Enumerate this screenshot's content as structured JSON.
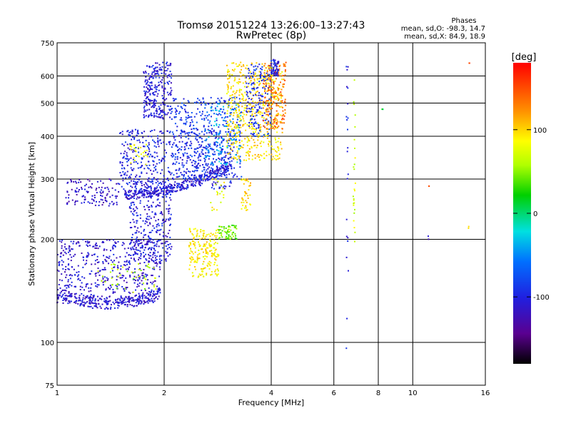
{
  "chart_data": {
    "type": "scatter",
    "title": "Tromsø 20151224 13:26:00–13:27:43",
    "subtitle": "RwPretec (8p)",
    "xlabel": "Frequency [MHz]",
    "ylabel": "Stationary phase Virtual Height [km]",
    "x_scale": "log",
    "y_scale": "log",
    "xlim": [
      1,
      16
    ],
    "ylim": [
      75,
      750
    ],
    "x_ticks": [
      1,
      2,
      4,
      6,
      8,
      10,
      16
    ],
    "x_tick_labels": [
      "1",
      "2",
      "4",
      "6",
      "8",
      "10",
      "16"
    ],
    "y_ticks": [
      75,
      100,
      200,
      300,
      400,
      500,
      600,
      750
    ],
    "y_tick_labels": [
      "75",
      "100",
      "200",
      "300",
      "400",
      "500",
      "600",
      "750"
    ],
    "grid": true,
    "color_scale": {
      "label": "[deg]",
      "range": [
        -180,
        180
      ],
      "ticks": [
        100,
        0,
        -100
      ],
      "tick_labels": [
        "100",
        "0",
        "-100"
      ]
    },
    "stats": {
      "title": "Phases",
      "line1": "mean, sd,O: -98.3, 14.7",
      "line2": "mean, sd,X:  84.9, 18.9"
    },
    "groups": [
      {
        "kind": "curve",
        "f0": 1.0,
        "f1": 1.95,
        "h0": 130,
        "h1": 140,
        "shape": "bowl",
        "phase": -110,
        "jitter": 0.04,
        "n": 260
      },
      {
        "kind": "cloud",
        "f0": 1.0,
        "f1": 1.95,
        "h0": 130,
        "h1": 200,
        "phase": -110,
        "n": 520
      },
      {
        "kind": "cloud",
        "f0": 1.3,
        "f1": 1.9,
        "h0": 140,
        "h1": 170,
        "phase": 60,
        "n": 45
      },
      {
        "kind": "cloud",
        "f0": 1.6,
        "f1": 2.1,
        "h0": 170,
        "h1": 300,
        "phase": -105,
        "n": 340
      },
      {
        "kind": "cloud",
        "f0": 1.05,
        "f1": 1.5,
        "h0": 250,
        "h1": 300,
        "phase": -115,
        "n": 120
      },
      {
        "kind": "curve",
        "f0": 1.55,
        "f1": 3.1,
        "h0": 270,
        "h1": 330,
        "shape": "rise",
        "phase": -110,
        "jitter": 0.03,
        "n": 300
      },
      {
        "kind": "cloud",
        "f0": 1.5,
        "f1": 3.1,
        "h0": 280,
        "h1": 420,
        "phase": -100,
        "n": 520
      },
      {
        "kind": "cloud",
        "f0": 1.6,
        "f1": 1.8,
        "h0": 330,
        "h1": 380,
        "phase": 80,
        "n": 25
      },
      {
        "kind": "cloud",
        "f0": 1.75,
        "f1": 2.1,
        "h0": 450,
        "h1": 660,
        "phase": -105,
        "n": 260
      },
      {
        "kind": "cloud",
        "f0": 2.1,
        "f1": 3.3,
        "h0": 300,
        "h1": 520,
        "phase": -90,
        "n": 380
      },
      {
        "kind": "cloud",
        "f0": 2.6,
        "f1": 3.3,
        "h0": 330,
        "h1": 500,
        "phase": -40,
        "n": 120
      },
      {
        "kind": "cloud",
        "f0": 3.0,
        "f1": 4.3,
        "h0": 340,
        "h1": 660,
        "phase": 95,
        "n": 520
      },
      {
        "kind": "cloud",
        "f0": 3.4,
        "f1": 4.0,
        "h0": 400,
        "h1": 650,
        "phase": -95,
        "n": 160
      },
      {
        "kind": "cloud",
        "f0": 3.8,
        "f1": 4.4,
        "h0": 420,
        "h1": 660,
        "phase": 135,
        "n": 170
      },
      {
        "kind": "cloud",
        "f0": 4.0,
        "f1": 4.2,
        "h0": 600,
        "h1": 670,
        "phase": -100,
        "n": 60
      },
      {
        "kind": "cloud",
        "f0": 2.35,
        "f1": 2.85,
        "h0": 155,
        "h1": 215,
        "phase": 92,
        "n": 200
      },
      {
        "kind": "cloud",
        "f0": 2.85,
        "f1": 3.2,
        "h0": 200,
        "h1": 220,
        "phase": 45,
        "n": 60
      },
      {
        "kind": "cloud",
        "f0": 3.3,
        "f1": 3.5,
        "h0": 240,
        "h1": 300,
        "phase": 100,
        "n": 40
      },
      {
        "kind": "cloud",
        "f0": 2.7,
        "f1": 2.95,
        "h0": 240,
        "h1": 300,
        "phase": 80,
        "n": 20
      },
      {
        "kind": "column",
        "f0": 6.5,
        "f1": 6.6,
        "h0": 95,
        "h1": 650,
        "phase": -100,
        "n": 22
      },
      {
        "kind": "column",
        "f0": 6.8,
        "f1": 6.9,
        "h0": 180,
        "h1": 660,
        "phase": 70,
        "n": 26
      },
      {
        "kind": "cloud",
        "f0": 8.2,
        "f1": 8.3,
        "h0": 470,
        "h1": 480,
        "phase": 10,
        "n": 2
      },
      {
        "kind": "cloud",
        "f0": 11.0,
        "f1": 11.1,
        "h0": 200,
        "h1": 205,
        "phase": -120,
        "n": 2
      },
      {
        "kind": "cloud",
        "f0": 11.1,
        "f1": 11.2,
        "h0": 285,
        "h1": 290,
        "phase": 140,
        "n": 2
      },
      {
        "kind": "cloud",
        "f0": 14.3,
        "f1": 14.4,
        "h0": 215,
        "h1": 218,
        "phase": 100,
        "n": 2
      },
      {
        "kind": "cloud",
        "f0": 14.4,
        "f1": 14.5,
        "h0": 650,
        "h1": 660,
        "phase": 150,
        "n": 2
      }
    ]
  }
}
